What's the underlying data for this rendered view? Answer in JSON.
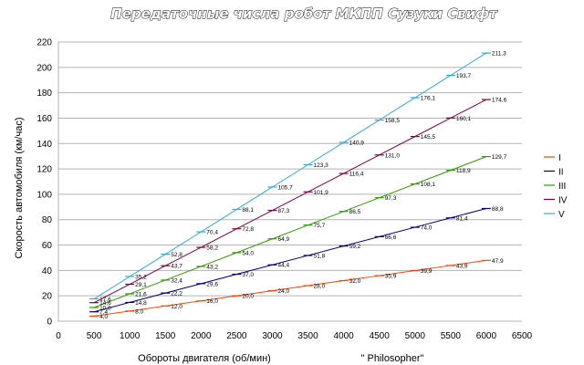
{
  "chart_data": {
    "type": "line",
    "title": "Передаточные числа робот МКПП Сузуки  Свифт",
    "xlabel": "Обороты двигателя (об/мин)",
    "ylabel": "Скорость автомобиля (км/час)",
    "credit": "\" Philosopher\"",
    "xlim": [
      0,
      6500
    ],
    "ylim": [
      0,
      220
    ],
    "xticks": [
      "0",
      "500",
      "1000",
      "1500",
      "2000",
      "2500",
      "3000",
      "3500",
      "4000",
      "4500",
      "5000",
      "5500",
      "6000",
      "6500"
    ],
    "yticks": [
      "0",
      "20",
      "40",
      "60",
      "80",
      "100",
      "120",
      "140",
      "160",
      "180",
      "200",
      "220"
    ],
    "grid": "horizontal",
    "legend_position": "right",
    "x": [
      500,
      1000,
      1500,
      2000,
      2500,
      3000,
      3500,
      4000,
      4500,
      5000,
      5500,
      6000
    ],
    "series": [
      {
        "name": "I",
        "color": "#ff4000",
        "values": [
          4.0,
          8.0,
          12.0,
          16.0,
          20.0,
          24.0,
          28.0,
          32.0,
          35.9,
          39.9,
          43.9,
          47.9
        ],
        "labels": [
          "4,0",
          "8,0",
          "12,0",
          "16,0",
          "20,0",
          "24,0",
          "28,0",
          "32,0",
          "35,9",
          "39,9",
          "43,9",
          "47,9"
        ]
      },
      {
        "name": "II",
        "color": "#000080",
        "values": [
          7.4,
          14.8,
          22.2,
          29.6,
          37.0,
          44.4,
          51.8,
          59.2,
          66.6,
          74.0,
          81.4,
          88.8
        ],
        "labels": [
          "7,4",
          "14,8",
          "22,2",
          "29,6",
          "37,0",
          "44,4",
          "51,8",
          "59,2",
          "66,6",
          "74,0",
          "81,4",
          "88,8"
        ]
      },
      {
        "name": "III",
        "color": "#339900",
        "values": [
          10.8,
          21.6,
          32.4,
          43.2,
          54.0,
          64.9,
          75.7,
          86.5,
          97.3,
          108.1,
          118.9,
          129.7
        ],
        "labels": [
          "10,8",
          "21,6",
          "32,4",
          "43,2",
          "54,0",
          "64,9",
          "75,7",
          "86,5",
          "97,3",
          "108,1",
          "118,9",
          "129,7"
        ]
      },
      {
        "name": "IV",
        "color": "#800040",
        "values": [
          14.6,
          29.1,
          43.7,
          58.2,
          72.8,
          87.3,
          101.9,
          116.4,
          131.0,
          145.5,
          160.1,
          174.6
        ],
        "labels": [
          "14,6",
          "29,1",
          "43,7",
          "58,2",
          "72,8",
          "87,3",
          "101,9",
          "116,4",
          "131,0",
          "145,5",
          "160,1",
          "174,6"
        ]
      },
      {
        "name": "V",
        "color": "#33aadd",
        "values": [
          17.6,
          35.2,
          52.8,
          70.4,
          88.1,
          105.7,
          123.3,
          140.9,
          158.5,
          176.1,
          193.7,
          211.3
        ],
        "labels": [
          "17,6",
          "35,2",
          "52,8",
          "70,4",
          "88,1",
          "105,7",
          "123,3",
          "140,9",
          "158,5",
          "176,1",
          "193,7",
          "211,3"
        ]
      }
    ]
  }
}
